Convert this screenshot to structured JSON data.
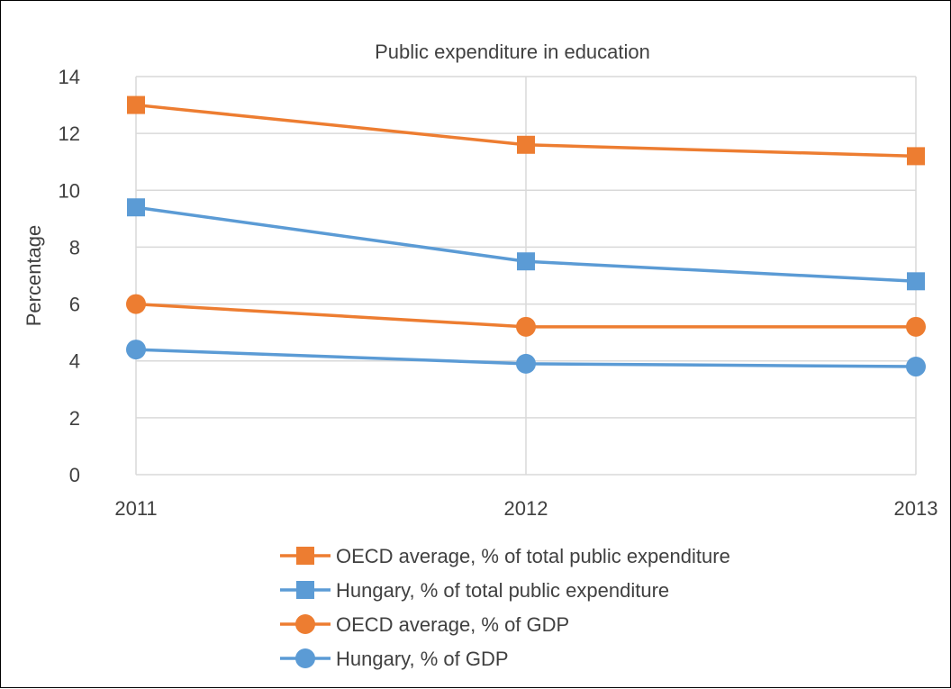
{
  "chart_data": {
    "type": "line",
    "title": "Public expenditure in education",
    "xlabel": "",
    "ylabel": "Percentage",
    "categories": [
      "2011",
      "2012",
      "2013"
    ],
    "ylim": [
      0,
      14
    ],
    "yticks": [
      0,
      2,
      4,
      6,
      8,
      10,
      12,
      14
    ],
    "grid": true,
    "legend_position": "bottom",
    "series": [
      {
        "name": "OECD average, % of total public expenditure",
        "values": [
          13.0,
          11.6,
          11.2
        ],
        "color": "#ED7D31",
        "marker": "square"
      },
      {
        "name": "Hungary, % of total public expenditure",
        "values": [
          9.4,
          7.5,
          6.8
        ],
        "color": "#5B9BD5",
        "marker": "square"
      },
      {
        "name": "OECD average, % of GDP",
        "values": [
          6.0,
          5.2,
          5.2
        ],
        "color": "#ED7D31",
        "marker": "circle"
      },
      {
        "name": "Hungary, % of GDP",
        "values": [
          4.4,
          3.9,
          3.8
        ],
        "color": "#5B9BD5",
        "marker": "circle"
      }
    ]
  }
}
